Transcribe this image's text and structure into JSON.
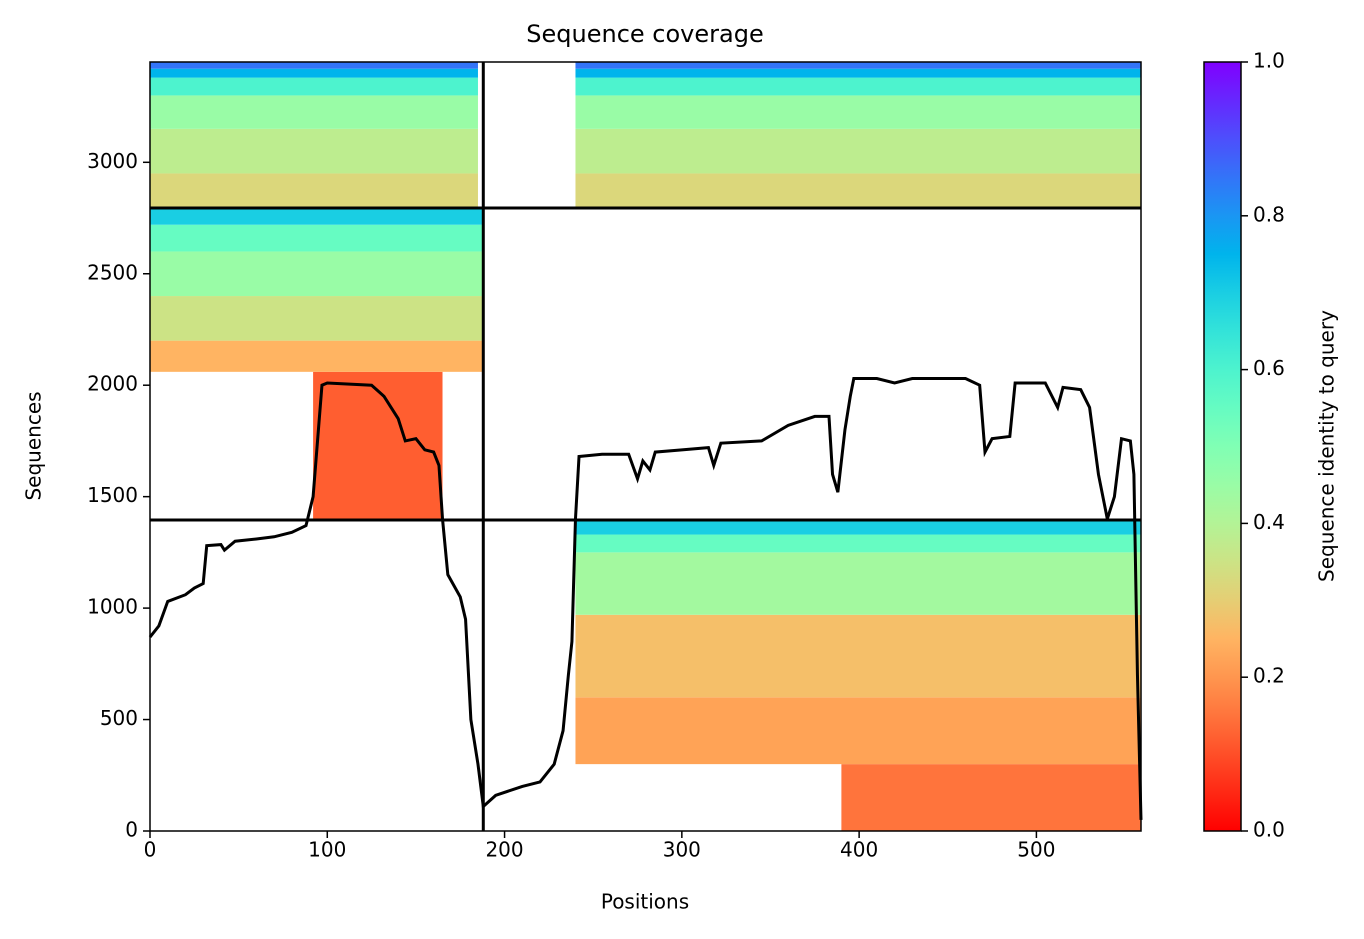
{
  "chart_data": {
    "type": "coverage",
    "title": "Sequence coverage",
    "xlabel": "Positions",
    "ylabel": "Sequences",
    "xlim": [
      0,
      559
    ],
    "ylim": [
      0,
      3450
    ],
    "xticks": [
      0,
      100,
      200,
      300,
      400,
      500
    ],
    "yticks": [
      0,
      500,
      1000,
      1500,
      2000,
      2500,
      3000
    ],
    "colormap": "rainbow_r",
    "bands": [
      {
        "x": [
          0,
          185
        ],
        "y": [
          2800,
          2950
        ],
        "identity": 0.32
      },
      {
        "x": [
          0,
          185
        ],
        "y": [
          2950,
          3150
        ],
        "identity": 0.38
      },
      {
        "x": [
          0,
          185
        ],
        "y": [
          3150,
          3300
        ],
        "identity": 0.45
      },
      {
        "x": [
          0,
          185
        ],
        "y": [
          3300,
          3380
        ],
        "identity": 0.6
      },
      {
        "x": [
          0,
          185
        ],
        "y": [
          3380,
          3420
        ],
        "identity": 0.75
      },
      {
        "x": [
          0,
          185
        ],
        "y": [
          3420,
          3450
        ],
        "identity": 0.85
      },
      {
        "x": [
          240,
          559
        ],
        "y": [
          2800,
          2950
        ],
        "identity": 0.32
      },
      {
        "x": [
          240,
          559
        ],
        "y": [
          2950,
          3150
        ],
        "identity": 0.38
      },
      {
        "x": [
          240,
          559
        ],
        "y": [
          3150,
          3300
        ],
        "identity": 0.45
      },
      {
        "x": [
          240,
          559
        ],
        "y": [
          3300,
          3380
        ],
        "identity": 0.6
      },
      {
        "x": [
          240,
          559
        ],
        "y": [
          3380,
          3420
        ],
        "identity": 0.75
      },
      {
        "x": [
          240,
          559
        ],
        "y": [
          3420,
          3450
        ],
        "identity": 0.85
      },
      {
        "x": [
          92,
          165
        ],
        "y": [
          1395,
          2060
        ],
        "identity": 0.12
      },
      {
        "x": [
          0,
          188
        ],
        "y": [
          2060,
          2200
        ],
        "identity": 0.25
      },
      {
        "x": [
          0,
          188
        ],
        "y": [
          2200,
          2400
        ],
        "identity": 0.35
      },
      {
        "x": [
          0,
          188
        ],
        "y": [
          2400,
          2600
        ],
        "identity": 0.45
      },
      {
        "x": [
          0,
          188
        ],
        "y": [
          2600,
          2720
        ],
        "identity": 0.55
      },
      {
        "x": [
          0,
          188
        ],
        "y": [
          2720,
          2795
        ],
        "identity": 0.7
      },
      {
        "x": [
          390,
          559
        ],
        "y": [
          0,
          300
        ],
        "identity": 0.15
      },
      {
        "x": [
          240,
          559
        ],
        "y": [
          300,
          600
        ],
        "identity": 0.22
      },
      {
        "x": [
          240,
          559
        ],
        "y": [
          600,
          970
        ],
        "identity": 0.27
      },
      {
        "x": [
          240,
          559
        ],
        "y": [
          970,
          1250
        ],
        "identity": 0.43
      },
      {
        "x": [
          240,
          559
        ],
        "y": [
          1250,
          1330
        ],
        "identity": 0.55
      },
      {
        "x": [
          240,
          559
        ],
        "y": [
          1330,
          1395
        ],
        "identity": 0.7
      }
    ],
    "dividers": {
      "x": [
        188
      ],
      "y": [
        1395,
        2795
      ]
    },
    "coverage": {
      "color": "#000000",
      "x": [
        0,
        5,
        10,
        20,
        25,
        30,
        32,
        40,
        42,
        48,
        60,
        70,
        80,
        88,
        92,
        95,
        97,
        100,
        125,
        132,
        140,
        144,
        150,
        155,
        160,
        163,
        165,
        168,
        175,
        178,
        181,
        185,
        188,
        195,
        210,
        220,
        228,
        233,
        236,
        238,
        240,
        242,
        255,
        270,
        275,
        278,
        282,
        285,
        300,
        315,
        318,
        322,
        345,
        360,
        375,
        383,
        385,
        388,
        392,
        395,
        397,
        410,
        420,
        430,
        460,
        468,
        471,
        475,
        485,
        488,
        505,
        512,
        515,
        525,
        530,
        535,
        540,
        544,
        548,
        553,
        555,
        557,
        559
      ],
      "values": [
        870,
        920,
        1030,
        1060,
        1090,
        1110,
        1280,
        1285,
        1260,
        1300,
        1310,
        1320,
        1340,
        1370,
        1500,
        1800,
        2000,
        2010,
        2000,
        1950,
        1850,
        1750,
        1760,
        1710,
        1700,
        1640,
        1400,
        1150,
        1050,
        950,
        500,
        300,
        110,
        160,
        200,
        220,
        300,
        450,
        700,
        850,
        1400,
        1680,
        1690,
        1690,
        1580,
        1660,
        1620,
        1700,
        1710,
        1720,
        1640,
        1740,
        1750,
        1820,
        1860,
        1860,
        1600,
        1520,
        1800,
        1950,
        2030,
        2030,
        2010,
        2030,
        2030,
        2000,
        1700,
        1760,
        1770,
        2010,
        2010,
        1900,
        1990,
        1980,
        1900,
        1600,
        1400,
        1500,
        1760,
        1750,
        1600,
        700,
        50
      ]
    },
    "colorbar": {
      "label": "Sequence identity to query",
      "lim": [
        0,
        1
      ],
      "ticks": [
        {
          "value": 0,
          "label": "0.0"
        },
        {
          "value": 0.2,
          "label": "0.2"
        },
        {
          "value": 0.4,
          "label": "0.4"
        },
        {
          "value": 0.6,
          "label": "0.6"
        },
        {
          "value": 0.8,
          "label": "0.8"
        },
        {
          "value": 1,
          "label": "1.0"
        }
      ]
    }
  }
}
